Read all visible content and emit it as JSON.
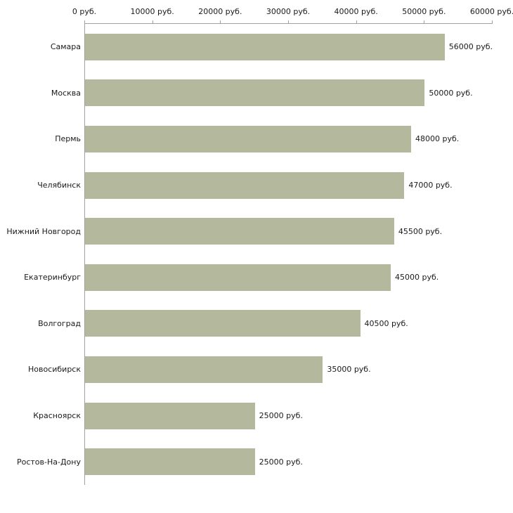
{
  "chart_data": {
    "type": "bar",
    "orientation": "horizontal",
    "title": "",
    "xlabel": "",
    "ylabel": "",
    "categories": [
      "Самара",
      "Москва",
      "Пермь",
      "Челябинск",
      "Нижний Новгород",
      "Екатеринбург",
      "Волгоград",
      "Новосибирск",
      "Красноярск",
      "Ростов-На-Дону"
    ],
    "values": [
      56000,
      50000,
      48000,
      47000,
      45500,
      45000,
      40500,
      35000,
      25000,
      25000
    ],
    "value_labels": [
      "56000 руб.",
      "50000 руб.",
      "48000 руб.",
      "47000 руб.",
      "45500 руб.",
      "45000 руб.",
      "40500 руб.",
      "35000 руб.",
      "25000 руб.",
      "25000 руб."
    ],
    "x_ticks": [
      0,
      10000,
      20000,
      30000,
      40000,
      50000,
      60000
    ],
    "x_tick_labels": [
      "0 руб.",
      "10000 руб.",
      "20000 руб.",
      "30000 руб.",
      "40000 руб.",
      "50000 руб.",
      "60000 руб."
    ],
    "xlim": [
      0,
      60000
    ],
    "grid": false,
    "legend": "none",
    "bar_color": "#b4b99e",
    "axis_color": "#a0a0a0"
  }
}
